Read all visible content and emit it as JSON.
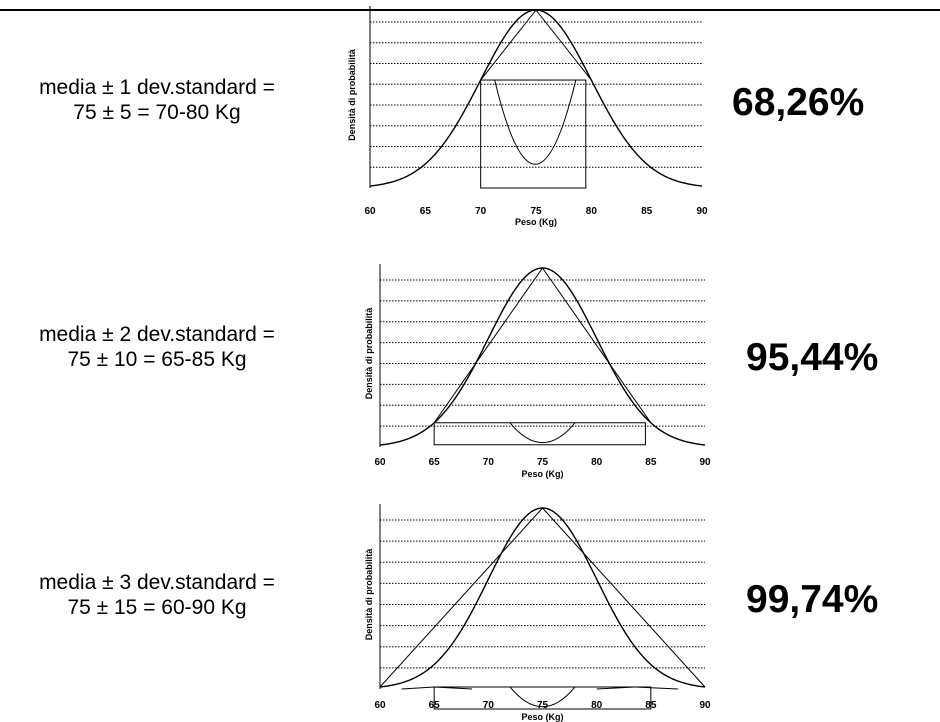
{
  "panels": [
    {
      "line1": "media ± 1 dev.standard =",
      "line2": "75 ± 5 = 70-80 Kg",
      "percent": "68,26%",
      "chart_data": {
        "type": "area",
        "xlabel": "Peso (Kg)",
        "ylabel": "Densità di probabilità",
        "x_ticks": [
          "60",
          "65",
          "70",
          "75",
          "80",
          "85",
          "90"
        ],
        "xlim": [
          60,
          90
        ],
        "mean": 75,
        "sd": 5,
        "k": 1,
        "shaded_range": [
          70,
          80
        ],
        "grid": "horizontal dotted"
      }
    },
    {
      "line1": "media ± 2 dev.standard =",
      "line2": "75 ± 10 = 65-85 Kg",
      "percent": "95,44%",
      "chart_data": {
        "type": "area",
        "xlabel": "Peso (Kg)",
        "ylabel": "Densità di probabilità",
        "x_ticks": [
          "60",
          "65",
          "70",
          "75",
          "80",
          "85",
          "90"
        ],
        "xlim": [
          60,
          90
        ],
        "mean": 75,
        "sd": 5,
        "k": 2,
        "shaded_range": [
          65,
          85
        ],
        "grid": "horizontal dotted"
      }
    },
    {
      "line1": "media ± 3 dev.standard =",
      "line2": "75 ± 15 = 60-90 Kg",
      "percent": "99,74%",
      "chart_data": {
        "type": "area",
        "xlabel": "Peso (Kg)",
        "ylabel": "Densità di probabilità",
        "x_ticks": [
          "60",
          "65",
          "70",
          "75",
          "80",
          "85",
          "90"
        ],
        "xlim": [
          60,
          90
        ],
        "mean": 75,
        "sd": 5,
        "k": 3,
        "shaded_range": [
          60,
          90
        ],
        "grid": "horizontal dotted"
      }
    }
  ]
}
